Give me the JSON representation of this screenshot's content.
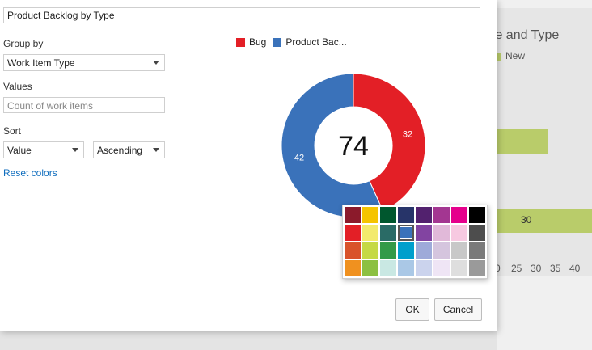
{
  "background": {
    "title": "te and Type",
    "legend_label": "New",
    "bar_label": "30",
    "ticks": [
      "0",
      "25",
      "30",
      "35",
      "40"
    ],
    "color": "#b9cc6a"
  },
  "dialog": {
    "title_value": "Product Backlog by Type",
    "group_by_label": "Group by",
    "group_by_value": "Work Item Type",
    "values_label": "Values",
    "values_placeholder": "Count of work items",
    "sort_label": "Sort",
    "sort_field_value": "Value",
    "sort_order_value": "Ascending",
    "reset_colors_label": "Reset colors",
    "ok_label": "OK",
    "cancel_label": "Cancel"
  },
  "chart_data": {
    "type": "pie",
    "total_label": "74",
    "series": [
      {
        "name": "Bug",
        "value": 32,
        "color": "#e31f26"
      },
      {
        "name": "Product Bac...",
        "value": 42,
        "color": "#3a72ba"
      }
    ]
  },
  "color_picker": {
    "selected_index": 11,
    "colors": [
      "#8b1a2b",
      "#f5c400",
      "#00572e",
      "#273469",
      "#52216e",
      "#a33691",
      "#e5008c",
      "#000000",
      "#e31f26",
      "#f3ea6c",
      "#2a6b66",
      "#3a72ba",
      "#8244a1",
      "#e1b9d9",
      "#f7c9e1",
      "#4d4d4d",
      "#d9532b",
      "#c5d946",
      "#339a48",
      "#009fcc",
      "#9eaad9",
      "#d5c5de",
      "#c8c8c8",
      "#7a7a7a",
      "#f0911f",
      "#8cc041",
      "#c9e8e3",
      "#aac8e6",
      "#cbd3ed",
      "#efe5f5",
      "#dedede",
      "#9a9a9a"
    ]
  }
}
